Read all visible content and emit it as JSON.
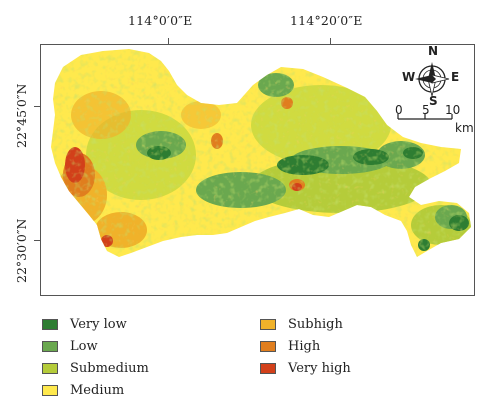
{
  "axes": {
    "top_ticks": [
      "114°0′0″E",
      "114°20′0″E"
    ],
    "left_ticks": [
      "22°45′0″N",
      "22°30′0″N"
    ]
  },
  "north_arrow": {
    "n": "N",
    "s": "S",
    "e": "E",
    "w": "W"
  },
  "scale_bar": {
    "labels": [
      "0",
      "5",
      "10"
    ],
    "unit": "km"
  },
  "legend": [
    {
      "label": "Very low",
      "color": "#2e7d32"
    },
    {
      "label": "Low",
      "color": "#6aa84f"
    },
    {
      "label": "Submedium",
      "color": "#b5cc3a"
    },
    {
      "label": "Medium",
      "color": "#ffe94d"
    },
    {
      "label": "Subhigh",
      "color": "#f0b22a"
    },
    {
      "label": "High",
      "color": "#e07e1e"
    },
    {
      "label": "Very high",
      "color": "#d2401a"
    }
  ]
}
